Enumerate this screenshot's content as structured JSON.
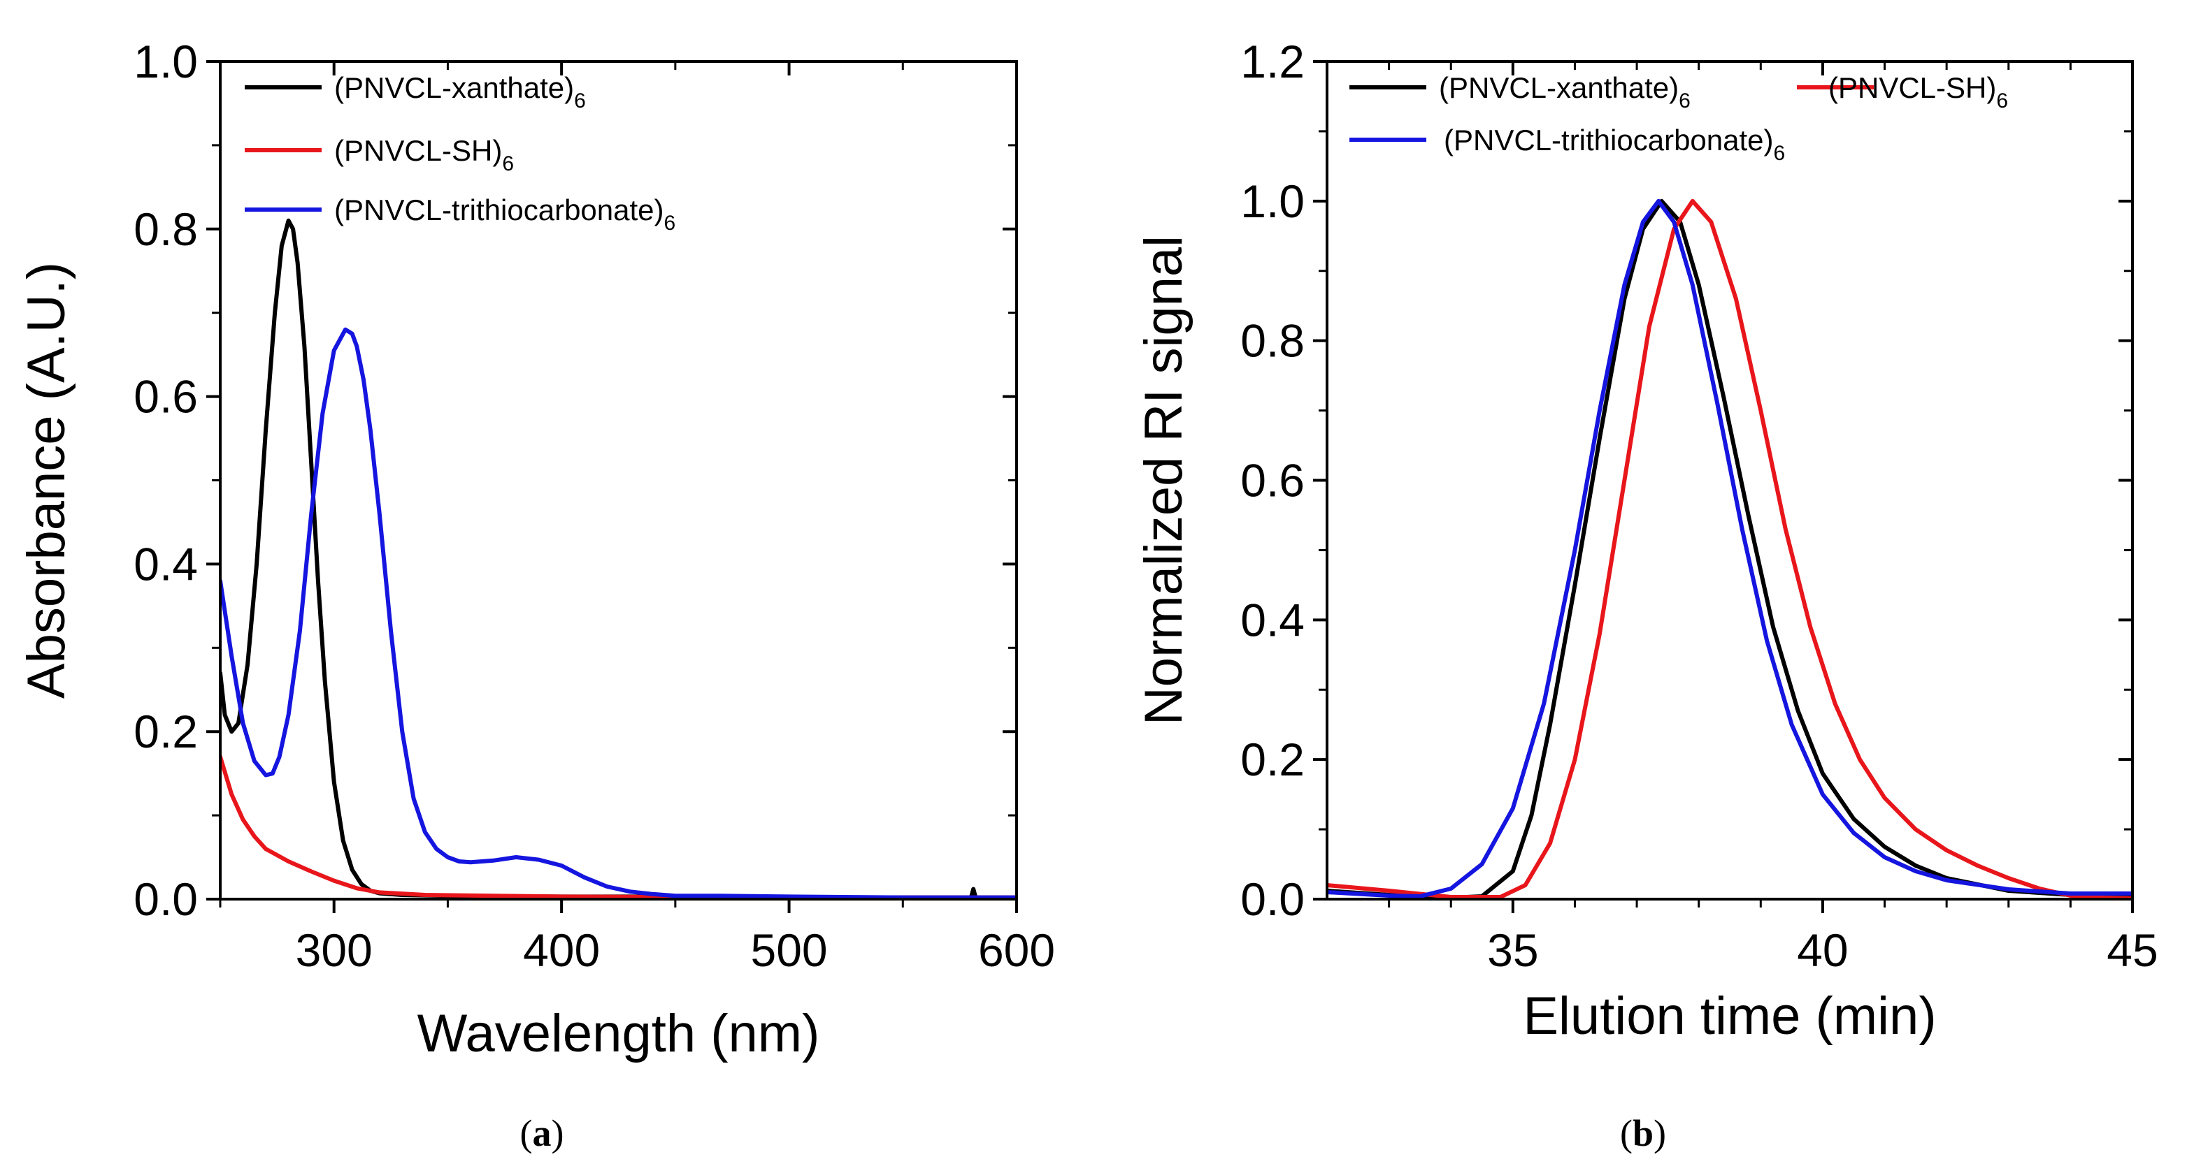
{
  "chart_data": [
    {
      "type": "line",
      "panel_label": {
        "open": "(",
        "letter": "a",
        "close": ")"
      },
      "xlabel": "Wavelength (nm)",
      "ylabel": "Absorbance (A.U.)",
      "xlim": [
        250,
        600
      ],
      "ylim": [
        0.0,
        1.0
      ],
      "x_major_ticks": [
        300,
        400,
        500,
        600
      ],
      "x_minor_ticks": [
        250,
        350,
        450,
        550
      ],
      "y_major_ticks": [
        "0.0",
        "0.2",
        "0.4",
        "0.6",
        "0.8",
        "1.0"
      ],
      "y_minor_ticks": [
        0.1,
        0.3,
        0.5,
        0.7,
        0.9
      ],
      "legend": {
        "placement": "top-left"
      },
      "series": [
        {
          "name": "(PNVCL-xanthate)",
          "sub": "6",
          "color": "#000000",
          "x": [
            250,
            252,
            255,
            258,
            262,
            266,
            270,
            274,
            277,
            280,
            282,
            284,
            287,
            290,
            293,
            296,
            300,
            304,
            308,
            312,
            316,
            320,
            330,
            350,
            400,
            450,
            500,
            550,
            580,
            581,
            582,
            590,
            600
          ],
          "y": [
            0.27,
            0.22,
            0.2,
            0.21,
            0.28,
            0.4,
            0.56,
            0.7,
            0.78,
            0.81,
            0.8,
            0.76,
            0.66,
            0.52,
            0.38,
            0.26,
            0.14,
            0.07,
            0.035,
            0.018,
            0.01,
            0.007,
            0.005,
            0.004,
            0.003,
            0.003,
            0.002,
            0.002,
            0.002,
            0.012,
            0.002,
            0.002,
            0.002
          ]
        },
        {
          "name": "(PNVCL-SH)",
          "sub": "6",
          "color": "#e8161b",
          "x": [
            250,
            255,
            260,
            265,
            270,
            280,
            290,
            300,
            310,
            320,
            340,
            400,
            500,
            600
          ],
          "y": [
            0.17,
            0.125,
            0.095,
            0.075,
            0.06,
            0.045,
            0.033,
            0.022,
            0.013,
            0.008,
            0.005,
            0.003,
            0.002,
            0.002
          ]
        },
        {
          "name": "(PNVCL-trithiocarbonate)",
          "sub": "6",
          "color": "#1515e0",
          "x": [
            250,
            255,
            260,
            265,
            270,
            273,
            276,
            280,
            285,
            290,
            295,
            300,
            305,
            308,
            310,
            313,
            316,
            320,
            325,
            330,
            335,
            340,
            345,
            350,
            355,
            360,
            370,
            380,
            390,
            400,
            410,
            420,
            430,
            440,
            450,
            470,
            500,
            550,
            600
          ],
          "y": [
            0.38,
            0.29,
            0.21,
            0.165,
            0.148,
            0.15,
            0.17,
            0.22,
            0.32,
            0.46,
            0.58,
            0.655,
            0.68,
            0.675,
            0.66,
            0.62,
            0.56,
            0.46,
            0.32,
            0.2,
            0.12,
            0.08,
            0.06,
            0.05,
            0.045,
            0.044,
            0.046,
            0.05,
            0.047,
            0.04,
            0.026,
            0.015,
            0.009,
            0.006,
            0.004,
            0.004,
            0.003,
            0.002,
            0.002
          ]
        }
      ]
    },
    {
      "type": "line",
      "panel_label": {
        "open": "(",
        "letter": "b",
        "close": ")"
      },
      "xlabel": "Elution time (min)",
      "ylabel": "Normalized RI signal",
      "xlim": [
        32,
        45
      ],
      "ylim": [
        0.0,
        1.2
      ],
      "x_major_ticks": [
        35,
        40,
        45
      ],
      "x_minor_ticks": [
        33,
        34,
        36,
        37,
        38,
        39,
        41,
        42,
        43,
        44
      ],
      "y_major_ticks": [
        "0.0",
        "0.2",
        "0.4",
        "0.6",
        "0.8",
        "1.0",
        "1.2"
      ],
      "y_minor_ticks": [
        0.1,
        0.3,
        0.5,
        0.7,
        0.9,
        1.1
      ],
      "legend": {
        "placement": "top"
      },
      "series": [
        {
          "name": "(PNVCL-xanthate)",
          "sub": "6",
          "color": "#000000",
          "x": [
            32,
            33,
            34,
            34.5,
            35,
            35.3,
            35.6,
            36,
            36.4,
            36.8,
            37.1,
            37.4,
            37.7,
            38,
            38.4,
            38.8,
            39.2,
            39.6,
            40,
            40.5,
            41,
            41.5,
            42,
            43,
            44,
            45
          ],
          "y": [
            0.012,
            0.006,
            0.002,
            0.004,
            0.04,
            0.12,
            0.25,
            0.45,
            0.66,
            0.86,
            0.96,
            1.0,
            0.97,
            0.88,
            0.72,
            0.55,
            0.39,
            0.27,
            0.18,
            0.115,
            0.075,
            0.048,
            0.03,
            0.012,
            0.006,
            0.005
          ]
        },
        {
          "name": "(PNVCL-SH)",
          "sub": "6",
          "color": "#e8161b",
          "x": [
            32,
            33,
            34,
            34.8,
            35.2,
            35.6,
            36,
            36.4,
            36.8,
            37.2,
            37.6,
            37.9,
            38.2,
            38.6,
            39,
            39.4,
            39.8,
            40.2,
            40.6,
            41,
            41.5,
            42,
            42.5,
            43,
            43.5,
            44,
            44.5,
            45
          ],
          "y": [
            0.02,
            0.012,
            0.003,
            0.003,
            0.02,
            0.08,
            0.2,
            0.38,
            0.6,
            0.82,
            0.96,
            1.0,
            0.97,
            0.86,
            0.7,
            0.53,
            0.39,
            0.28,
            0.2,
            0.145,
            0.1,
            0.07,
            0.048,
            0.03,
            0.015,
            0.005,
            0.002,
            0.001
          ]
        },
        {
          "name": "(PNVCL-trithiocarbonate)",
          "sub": "6",
          "color": "#1515e0",
          "x": [
            32,
            33,
            33.5,
            34,
            34.5,
            35,
            35.5,
            36,
            36.4,
            36.8,
            37.1,
            37.35,
            37.6,
            37.9,
            38.3,
            38.7,
            39.1,
            39.5,
            40,
            40.5,
            41,
            41.5,
            42,
            43,
            44,
            45
          ],
          "y": [
            0.01,
            0.005,
            0.004,
            0.015,
            0.05,
            0.13,
            0.28,
            0.5,
            0.7,
            0.88,
            0.97,
            1.0,
            0.97,
            0.88,
            0.71,
            0.53,
            0.37,
            0.25,
            0.15,
            0.095,
            0.06,
            0.04,
            0.027,
            0.014,
            0.008,
            0.008
          ]
        }
      ]
    }
  ]
}
